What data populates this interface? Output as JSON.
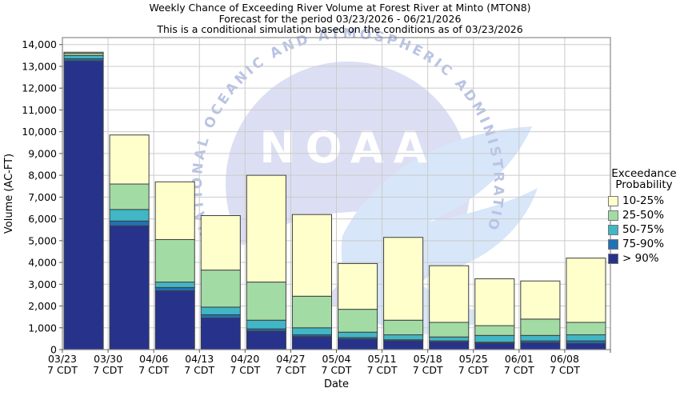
{
  "legend": {
    "title_line1": "Exceedance",
    "title_line2": "Probability",
    "items": [
      {
        "label": "10-25%",
        "color": "#FFFFCC"
      },
      {
        "label": "25-50%",
        "color": "#A3DBA4"
      },
      {
        "label": "50-75%",
        "color": "#41B6C4"
      },
      {
        "label": "75-90%",
        "color": "#2171B5"
      },
      {
        "label": "> 90%",
        "color": "#27338B"
      }
    ]
  },
  "watermark": {
    "logo_text": "NOAA",
    "arc_text": "NATIONAL OCEANIC AND ATMOSPHERIC ADMINISTRATION"
  },
  "colors": {
    "grid": "#cbcbcb",
    "plot_border": "#8a8a8a",
    "bar_border": "#3f3f3f",
    "watermark_circle": "#dcdff3",
    "watermark_wing": "#d7e6f8",
    "watermark_arc_text": "#b9c3e4"
  },
  "chart_data": {
    "type": "bar",
    "stacked": true,
    "title": "Weekly Chance of Exceeding River Volume at Forest River at Minto (MTON8)",
    "subtitle": "Forecast for the period 03/23/2026 - 06/21/2026",
    "note": "This is a conditional simulation based on the conditions as of 03/23/2026",
    "xlabel": "Date",
    "ylabel": "Volume (AC-FT)",
    "ylim": [
      0,
      14320
    ],
    "ytick_step": 1000,
    "ytick_max": 14000,
    "grid": true,
    "legend_position": "right",
    "categories": [
      "03/23",
      "03/30",
      "04/06",
      "04/13",
      "04/20",
      "04/27",
      "05/04",
      "05/11",
      "05/18",
      "05/25",
      "06/01",
      "06/08"
    ],
    "category_sublabel": "7 CDT",
    "series": [
      {
        "name": "> 90%",
        "color": "#27338B",
        "values": [
          13250,
          5680,
          2700,
          1450,
          850,
          600,
          480,
          400,
          350,
          290,
          320,
          280
        ]
      },
      {
        "name": "75-90%",
        "color": "#2171B5",
        "values": [
          100,
          220,
          150,
          150,
          100,
          80,
          70,
          50,
          50,
          50,
          80,
          120
        ]
      },
      {
        "name": "50-75%",
        "color": "#41B6C4",
        "values": [
          150,
          530,
          250,
          350,
          400,
          320,
          250,
          230,
          180,
          310,
          250,
          280
        ]
      },
      {
        "name": "25-50%",
        "color": "#A3DBA4",
        "values": [
          100,
          1170,
          1950,
          1700,
          1750,
          1450,
          1050,
          670,
          670,
          450,
          750,
          570
        ]
      },
      {
        "name": "10-25%",
        "color": "#FFFFCC",
        "values": [
          50,
          2250,
          2650,
          2500,
          4900,
          3750,
          2100,
          3800,
          2600,
          2150,
          1750,
          2950
        ]
      }
    ],
    "totals": [
      13650,
      9850,
      7700,
      6150,
      8000,
      6200,
      3950,
      5150,
      3850,
      3250,
      3150,
      4200
    ]
  }
}
